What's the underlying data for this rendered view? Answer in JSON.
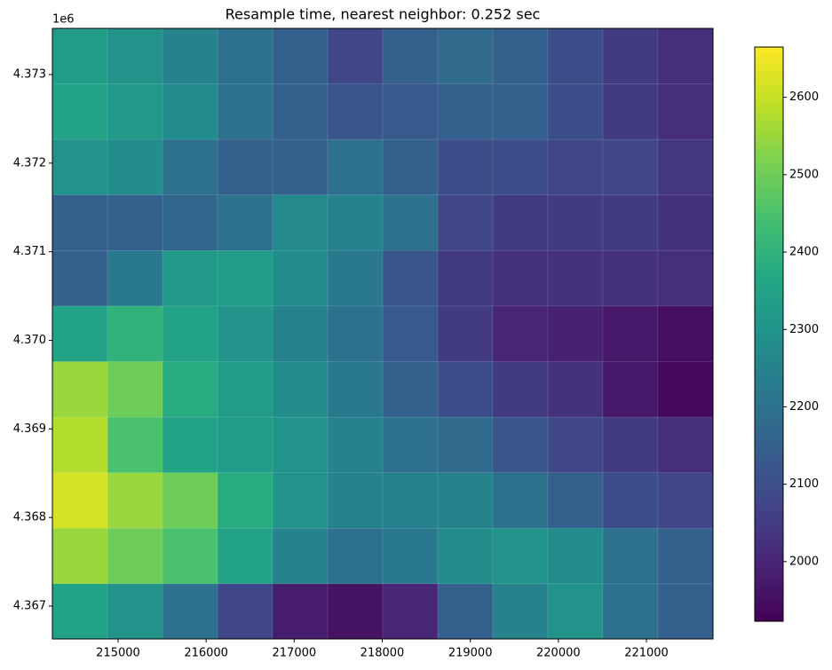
{
  "chart_data": {
    "type": "heatmap",
    "title": "Resample time, nearest neighbor: 0.252 sec",
    "y_offset_label": "1e6",
    "colormap": "viridis",
    "x": [
      214567,
      215192,
      215817,
      216442,
      217067,
      217692,
      218317,
      218942,
      219567,
      220192,
      220817,
      221442
    ],
    "y": [
      4373208,
      4372581,
      4371954,
      4371327,
      4370700,
      4370073,
      4369446,
      4368819,
      4368192,
      4367565,
      4366938
    ],
    "z": [
      [
        2330,
        2300,
        2250,
        2200,
        2150,
        2080,
        2150,
        2180,
        2150,
        2100,
        2050,
        2020
      ],
      [
        2350,
        2320,
        2280,
        2200,
        2150,
        2120,
        2130,
        2150,
        2150,
        2100,
        2050,
        2020
      ],
      [
        2300,
        2280,
        2200,
        2150,
        2150,
        2200,
        2150,
        2100,
        2100,
        2080,
        2080,
        2040
      ],
      [
        2150,
        2150,
        2170,
        2200,
        2270,
        2250,
        2200,
        2080,
        2050,
        2050,
        2050,
        2030
      ],
      [
        2150,
        2220,
        2320,
        2330,
        2280,
        2220,
        2120,
        2050,
        2030,
        2030,
        2030,
        2020
      ],
      [
        2350,
        2400,
        2350,
        2300,
        2250,
        2200,
        2130,
        2050,
        2000,
        1990,
        1970,
        1950
      ],
      [
        2550,
        2500,
        2380,
        2330,
        2280,
        2220,
        2150,
        2100,
        2050,
        2030,
        1970,
        1940
      ],
      [
        2580,
        2450,
        2350,
        2330,
        2300,
        2250,
        2200,
        2180,
        2120,
        2080,
        2050,
        2020
      ],
      [
        2620,
        2550,
        2500,
        2380,
        2300,
        2250,
        2250,
        2250,
        2200,
        2150,
        2100,
        2080
      ],
      [
        2550,
        2500,
        2450,
        2350,
        2250,
        2200,
        2220,
        2280,
        2300,
        2280,
        2200,
        2150
      ],
      [
        2350,
        2300,
        2200,
        2080,
        1980,
        1960,
        2000,
        2150,
        2250,
        2300,
        2200,
        2150
      ]
    ],
    "xlim": [
      214254,
      221756
    ],
    "xticks": [
      215000,
      216000,
      217000,
      218000,
      219000,
      220000,
      221000
    ],
    "ylim": [
      4366629,
      4373521
    ],
    "yticks": [
      {
        "value": 4367000,
        "label": "4.367"
      },
      {
        "value": 4368000,
        "label": "4.368"
      },
      {
        "value": 4369000,
        "label": "4.369"
      },
      {
        "value": 4370000,
        "label": "4.370"
      },
      {
        "value": 4371000,
        "label": "4.371"
      },
      {
        "value": 4372000,
        "label": "4.372"
      },
      {
        "value": 4373000,
        "label": "4.373"
      }
    ],
    "clim": [
      1923,
      2665
    ],
    "cticks": [
      2000,
      2100,
      2200,
      2300,
      2400,
      2500,
      2600
    ]
  }
}
